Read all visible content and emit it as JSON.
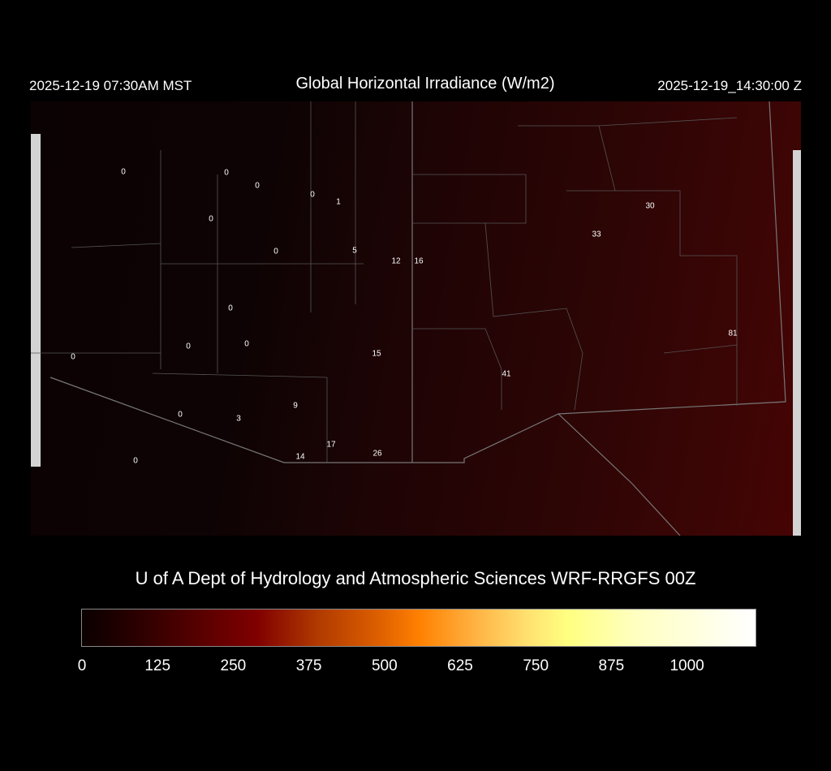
{
  "header": {
    "local_time": "2025-12-19 07:30AM MST",
    "title": "Global Horizontal Irradiance (W/m2)",
    "valid_time": "2025-12-19_14:30:00 Z"
  },
  "credit": "U of A Dept of Hydrology and Atmospheric Sciences WRF-RRGFS 00Z",
  "colorbar": {
    "ticks": [
      "0",
      "125",
      "250",
      "375",
      "500",
      "625",
      "750",
      "875",
      "1000"
    ],
    "colors": [
      "#0a0000",
      "#800000",
      "#ff8000",
      "#ffff80",
      "#ffffff"
    ]
  },
  "stations": [
    "0",
    "0",
    "0",
    "0",
    "1",
    "0",
    "0",
    "5",
    "12",
    "16",
    "0",
    "0",
    "0",
    "0",
    "15",
    "9",
    "0",
    "3",
    "17",
    "14",
    "26",
    "0",
    "33",
    "30",
    "81",
    "41"
  ]
}
